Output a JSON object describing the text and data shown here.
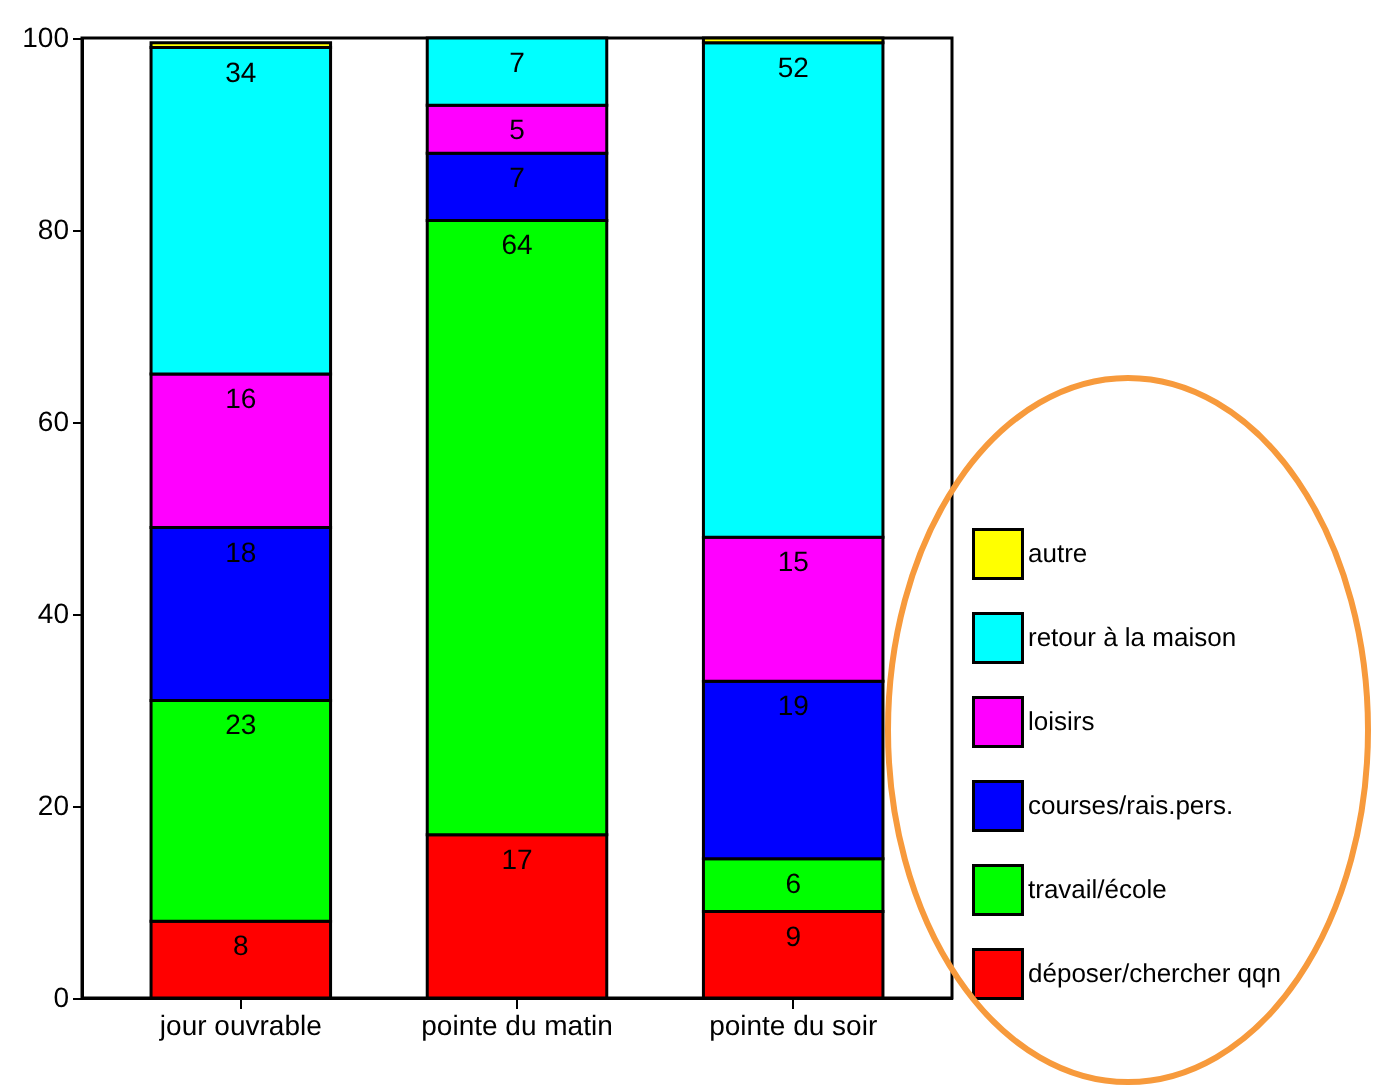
{
  "chart_data": {
    "type": "bar",
    "stacked": true,
    "categories": [
      "jour ouvrable",
      "pointe du matin",
      "pointe du soir"
    ],
    "series": [
      {
        "name": "déposer/chercher qqn",
        "color": "#ff0000",
        "values": [
          8,
          17,
          9
        ],
        "value_labels": [
          "8",
          "17",
          "9"
        ]
      },
      {
        "name": "travail/école",
        "color": "#00ff00",
        "values": [
          23,
          64,
          5.5
        ],
        "value_labels": [
          "23",
          "64",
          "6"
        ]
      },
      {
        "name": "courses/rais.pers.",
        "color": "#0000ff",
        "values": [
          18,
          7,
          18.5
        ],
        "value_labels": [
          "18",
          "7",
          "19"
        ]
      },
      {
        "name": "loisirs",
        "color": "#ff00ff",
        "values": [
          16,
          5,
          15
        ],
        "value_labels": [
          "16",
          "5",
          "15"
        ]
      },
      {
        "name": "retour à la maison",
        "color": "#00ffff",
        "values": [
          34,
          7,
          51.5
        ],
        "value_labels": [
          "34",
          "7",
          "52"
        ]
      },
      {
        "name": "autre",
        "color": "#ffff00",
        "values": [
          0.5,
          null,
          0.5
        ],
        "value_labels": [
          null,
          null,
          null
        ]
      }
    ],
    "ylim": [
      0,
      100
    ],
    "yticks": [
      0,
      20,
      40,
      60,
      80,
      100
    ],
    "grid": false,
    "legend": "right"
  }
}
